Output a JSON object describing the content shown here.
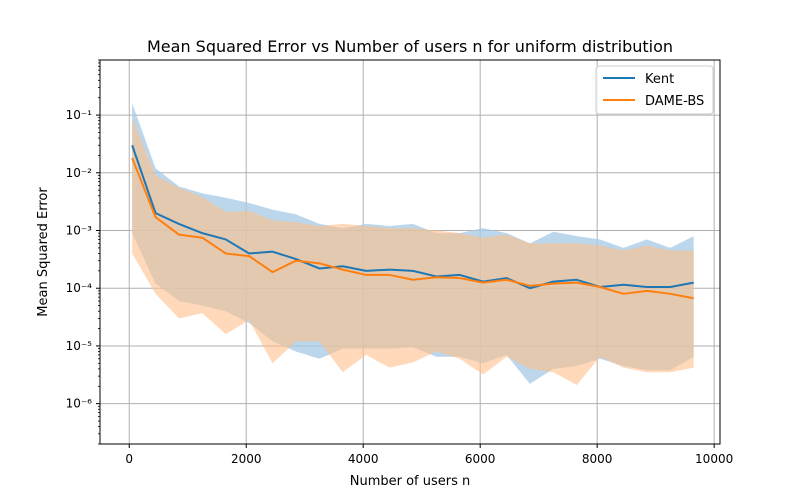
{
  "chart_data": {
    "type": "line",
    "title": "Mean Squared Error vs Number of users n for uniform distribution",
    "xlabel": "Number of users n",
    "ylabel": "Mean Squared Error",
    "xlim": [
      -500,
      10100
    ],
    "ylim": [
      2e-07,
      0.9
    ],
    "yscale": "log",
    "grid": true,
    "legend_position": "top-right",
    "x_ticks": [
      0,
      2000,
      4000,
      6000,
      8000,
      10000
    ],
    "x_tick_labels": [
      "0",
      "2000",
      "4000",
      "6000",
      "8000",
      "10000"
    ],
    "y_ticks": [
      1e-06,
      1e-05,
      0.0001,
      0.001,
      0.01,
      0.1
    ],
    "y_tick_labels": [
      "10⁻⁶",
      "10⁻⁵",
      "10⁻⁴",
      "10⁻³",
      "10⁻²",
      "10⁻¹"
    ],
    "x": [
      50,
      450,
      850,
      1250,
      1650,
      2050,
      2450,
      2850,
      3250,
      3650,
      4050,
      4450,
      4850,
      5250,
      5650,
      6050,
      6450,
      6850,
      7250,
      7650,
      8050,
      8450,
      8850,
      9250,
      9650
    ],
    "series": [
      {
        "name": "Kent",
        "color": "#1f77b4",
        "values": [
          0.03,
          0.002,
          0.0013,
          0.0009,
          0.0007,
          0.0004,
          0.00043,
          0.00032,
          0.00022,
          0.00024,
          0.0002,
          0.00021,
          0.0002,
          0.00016,
          0.00017,
          0.00013,
          0.00015,
          0.0001,
          0.00013,
          0.00014,
          0.000105,
          0.000115,
          0.000105,
          0.000105,
          0.000125
        ],
        "upper": [
          0.16,
          0.012,
          0.0058,
          0.0044,
          0.0037,
          0.003,
          0.0023,
          0.0019,
          0.0013,
          0.0011,
          0.0013,
          0.0012,
          0.0013,
          0.0009,
          0.0009,
          0.0011,
          0.0009,
          0.0006,
          0.00095,
          0.0008,
          0.0007,
          0.0005,
          0.0007,
          0.0005,
          0.0008
        ],
        "lower": [
          0.0009,
          0.00012,
          6e-05,
          5e-05,
          4e-05,
          2.5e-05,
          1.2e-05,
          8e-06,
          6e-06,
          9e-06,
          9e-06,
          9e-06,
          9.5e-06,
          6.5e-06,
          6.5e-06,
          5e-06,
          7e-06,
          2.2e-06,
          4e-06,
          4.5e-06,
          6e-06,
          4.5e-06,
          3.8e-06,
          3.8e-06,
          6.5e-06
        ],
        "band_color": "#a6c8e6"
      },
      {
        "name": "DAME-BS",
        "color": "#ff7f0e",
        "values": [
          0.018,
          0.0017,
          0.00085,
          0.00075,
          0.0004,
          0.00036,
          0.00019,
          0.0003,
          0.00027,
          0.00021,
          0.00017,
          0.00017,
          0.00014,
          0.000155,
          0.00015,
          0.000125,
          0.00014,
          0.00011,
          0.00012,
          0.000125,
          0.000105,
          8e-05,
          9e-05,
          8e-05,
          6.7e-05
        ],
        "upper": [
          0.09,
          0.009,
          0.0055,
          0.0038,
          0.0021,
          0.0022,
          0.0015,
          0.0014,
          0.0012,
          0.0013,
          0.0012,
          0.0011,
          0.0011,
          0.001,
          0.0009,
          0.00075,
          0.00085,
          0.0006,
          0.0006,
          0.0006,
          0.00055,
          0.00045,
          0.00055,
          0.00045,
          0.00045
        ],
        "lower": [
          0.0004,
          8e-05,
          3e-05,
          3.7e-05,
          1.6e-05,
          2.8e-05,
          5e-06,
          1.2e-05,
          1.2e-05,
          3.5e-06,
          7e-06,
          4.2e-06,
          5.2e-06,
          8e-06,
          6e-06,
          3.2e-06,
          6.5e-06,
          4e-06,
          3.5e-06,
          2.1e-06,
          6.5e-06,
          4.2e-06,
          3.5e-06,
          3.5e-06,
          4.2e-06
        ],
        "band_color": "#ffc08a"
      }
    ]
  }
}
